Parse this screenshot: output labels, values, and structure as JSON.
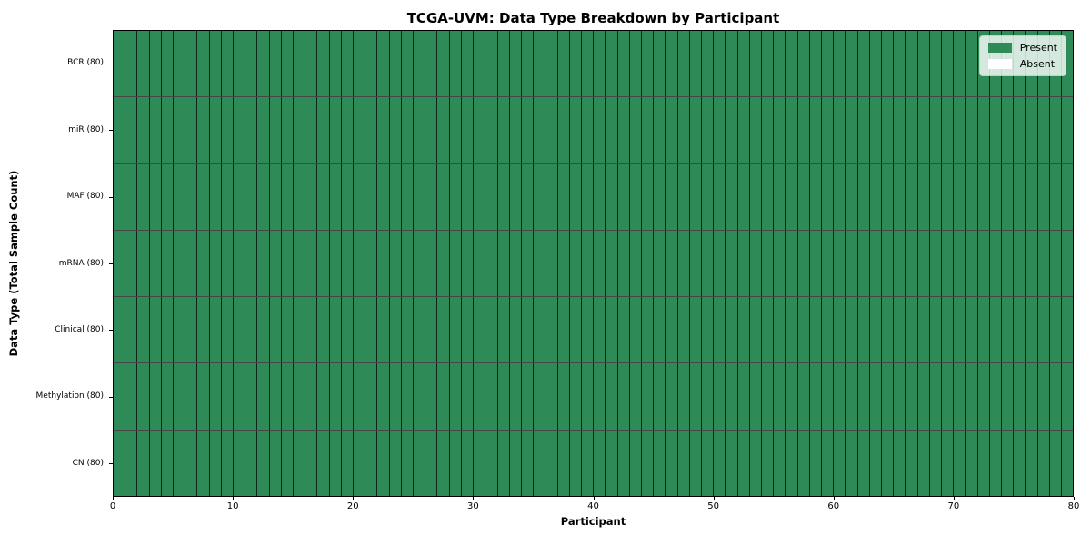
{
  "chart_data": {
    "type": "heatmap",
    "title": "TCGA-UVM: Data Type Breakdown by Participant",
    "xlabel": "Participant",
    "ylabel": "Data Type (Total Sample Count)",
    "xlim": [
      0,
      80
    ],
    "x_ticks": [
      0,
      10,
      20,
      30,
      40,
      50,
      60,
      70,
      80
    ],
    "n_participants": 80,
    "value_meaning": {
      "1": "Present",
      "0": "Absent"
    },
    "rows_top_to_bottom": [
      {
        "label": "BCR (80)",
        "data_type": "BCR",
        "total_sample_count": 80,
        "present_count": 80,
        "values": [
          1,
          1,
          1,
          1,
          1,
          1,
          1,
          1,
          1,
          1,
          1,
          1,
          1,
          1,
          1,
          1,
          1,
          1,
          1,
          1,
          1,
          1,
          1,
          1,
          1,
          1,
          1,
          1,
          1,
          1,
          1,
          1,
          1,
          1,
          1,
          1,
          1,
          1,
          1,
          1,
          1,
          1,
          1,
          1,
          1,
          1,
          1,
          1,
          1,
          1,
          1,
          1,
          1,
          1,
          1,
          1,
          1,
          1,
          1,
          1,
          1,
          1,
          1,
          1,
          1,
          1,
          1,
          1,
          1,
          1,
          1,
          1,
          1,
          1,
          1,
          1,
          1,
          1,
          1,
          1
        ]
      },
      {
        "label": "miR (80)",
        "data_type": "miR",
        "total_sample_count": 80,
        "present_count": 80,
        "values": [
          1,
          1,
          1,
          1,
          1,
          1,
          1,
          1,
          1,
          1,
          1,
          1,
          1,
          1,
          1,
          1,
          1,
          1,
          1,
          1,
          1,
          1,
          1,
          1,
          1,
          1,
          1,
          1,
          1,
          1,
          1,
          1,
          1,
          1,
          1,
          1,
          1,
          1,
          1,
          1,
          1,
          1,
          1,
          1,
          1,
          1,
          1,
          1,
          1,
          1,
          1,
          1,
          1,
          1,
          1,
          1,
          1,
          1,
          1,
          1,
          1,
          1,
          1,
          1,
          1,
          1,
          1,
          1,
          1,
          1,
          1,
          1,
          1,
          1,
          1,
          1,
          1,
          1,
          1,
          1
        ]
      },
      {
        "label": "MAF (80)",
        "data_type": "MAF",
        "total_sample_count": 80,
        "present_count": 80,
        "values": [
          1,
          1,
          1,
          1,
          1,
          1,
          1,
          1,
          1,
          1,
          1,
          1,
          1,
          1,
          1,
          1,
          1,
          1,
          1,
          1,
          1,
          1,
          1,
          1,
          1,
          1,
          1,
          1,
          1,
          1,
          1,
          1,
          1,
          1,
          1,
          1,
          1,
          1,
          1,
          1,
          1,
          1,
          1,
          1,
          1,
          1,
          1,
          1,
          1,
          1,
          1,
          1,
          1,
          1,
          1,
          1,
          1,
          1,
          1,
          1,
          1,
          1,
          1,
          1,
          1,
          1,
          1,
          1,
          1,
          1,
          1,
          1,
          1,
          1,
          1,
          1,
          1,
          1,
          1,
          1
        ]
      },
      {
        "label": "mRNA (80)",
        "data_type": "mRNA",
        "total_sample_count": 80,
        "present_count": 80,
        "values": [
          1,
          1,
          1,
          1,
          1,
          1,
          1,
          1,
          1,
          1,
          1,
          1,
          1,
          1,
          1,
          1,
          1,
          1,
          1,
          1,
          1,
          1,
          1,
          1,
          1,
          1,
          1,
          1,
          1,
          1,
          1,
          1,
          1,
          1,
          1,
          1,
          1,
          1,
          1,
          1,
          1,
          1,
          1,
          1,
          1,
          1,
          1,
          1,
          1,
          1,
          1,
          1,
          1,
          1,
          1,
          1,
          1,
          1,
          1,
          1,
          1,
          1,
          1,
          1,
          1,
          1,
          1,
          1,
          1,
          1,
          1,
          1,
          1,
          1,
          1,
          1,
          1,
          1,
          1,
          1
        ]
      },
      {
        "label": "Clinical (80)",
        "data_type": "Clinical",
        "total_sample_count": 80,
        "present_count": 80,
        "values": [
          1,
          1,
          1,
          1,
          1,
          1,
          1,
          1,
          1,
          1,
          1,
          1,
          1,
          1,
          1,
          1,
          1,
          1,
          1,
          1,
          1,
          1,
          1,
          1,
          1,
          1,
          1,
          1,
          1,
          1,
          1,
          1,
          1,
          1,
          1,
          1,
          1,
          1,
          1,
          1,
          1,
          1,
          1,
          1,
          1,
          1,
          1,
          1,
          1,
          1,
          1,
          1,
          1,
          1,
          1,
          1,
          1,
          1,
          1,
          1,
          1,
          1,
          1,
          1,
          1,
          1,
          1,
          1,
          1,
          1,
          1,
          1,
          1,
          1,
          1,
          1,
          1,
          1,
          1,
          1
        ]
      },
      {
        "label": "Methylation (80)",
        "data_type": "Methylation",
        "total_sample_count": 80,
        "present_count": 80,
        "values": [
          1,
          1,
          1,
          1,
          1,
          1,
          1,
          1,
          1,
          1,
          1,
          1,
          1,
          1,
          1,
          1,
          1,
          1,
          1,
          1,
          1,
          1,
          1,
          1,
          1,
          1,
          1,
          1,
          1,
          1,
          1,
          1,
          1,
          1,
          1,
          1,
          1,
          1,
          1,
          1,
          1,
          1,
          1,
          1,
          1,
          1,
          1,
          1,
          1,
          1,
          1,
          1,
          1,
          1,
          1,
          1,
          1,
          1,
          1,
          1,
          1,
          1,
          1,
          1,
          1,
          1,
          1,
          1,
          1,
          1,
          1,
          1,
          1,
          1,
          1,
          1,
          1,
          1,
          1,
          1
        ]
      },
      {
        "label": "CN (80)",
        "data_type": "CN",
        "total_sample_count": 80,
        "present_count": 80,
        "values": [
          1,
          1,
          1,
          1,
          1,
          1,
          1,
          1,
          1,
          1,
          1,
          1,
          1,
          1,
          1,
          1,
          1,
          1,
          1,
          1,
          1,
          1,
          1,
          1,
          1,
          1,
          1,
          1,
          1,
          1,
          1,
          1,
          1,
          1,
          1,
          1,
          1,
          1,
          1,
          1,
          1,
          1,
          1,
          1,
          1,
          1,
          1,
          1,
          1,
          1,
          1,
          1,
          1,
          1,
          1,
          1,
          1,
          1,
          1,
          1,
          1,
          1,
          1,
          1,
          1,
          1,
          1,
          1,
          1,
          1,
          1,
          1,
          1,
          1,
          1,
          1,
          1,
          1,
          1,
          1
        ]
      }
    ],
    "legend": {
      "position": "upper right",
      "entries": [
        {
          "label": "Present",
          "color": "#2e8b57"
        },
        {
          "label": "Absent",
          "color": "#ffffff"
        }
      ]
    },
    "colors": {
      "present": "#2e8b57",
      "absent": "#ffffff",
      "cell_border": "#262626",
      "axes_border": "#000000",
      "background": "#ffffff"
    }
  }
}
